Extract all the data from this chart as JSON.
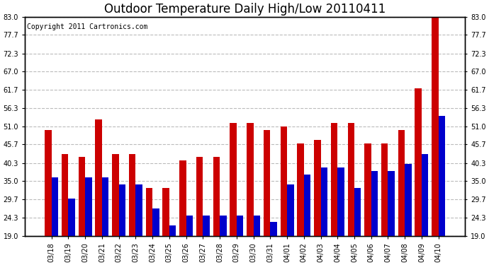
{
  "title": "Outdoor Temperature Daily High/Low 20110411",
  "copyright": "Copyright 2011 Cartronics.com",
  "dates": [
    "03/18",
    "03/19",
    "03/20",
    "03/21",
    "03/22",
    "03/23",
    "03/24",
    "03/25",
    "03/26",
    "03/27",
    "03/28",
    "03/29",
    "03/30",
    "03/31",
    "04/01",
    "04/02",
    "04/03",
    "04/04",
    "04/05",
    "04/06",
    "04/07",
    "04/08",
    "04/09",
    "04/10"
  ],
  "highs": [
    50.0,
    43.0,
    42.0,
    53.0,
    43.0,
    43.0,
    33.0,
    33.0,
    41.0,
    42.0,
    42.0,
    52.0,
    52.0,
    50.0,
    51.0,
    46.0,
    47.0,
    52.0,
    52.0,
    46.0,
    46.0,
    50.0,
    62.0,
    83.0
  ],
  "lows": [
    36.0,
    30.0,
    36.0,
    36.0,
    34.0,
    34.0,
    27.0,
    22.0,
    25.0,
    25.0,
    25.0,
    25.0,
    25.0,
    23.0,
    34.0,
    37.0,
    39.0,
    39.0,
    33.0,
    38.0,
    38.0,
    40.0,
    43.0,
    54.0
  ],
  "bar_color_high": "#cc0000",
  "bar_color_low": "#0000cc",
  "ylim": [
    19.0,
    83.0
  ],
  "yticks": [
    19.0,
    24.3,
    29.7,
    35.0,
    40.3,
    45.7,
    51.0,
    56.3,
    61.7,
    67.0,
    72.3,
    77.7,
    83.0
  ],
  "ytick_labels": [
    "19.0",
    "24.3",
    "29.7",
    "35.0",
    "40.3",
    "45.7",
    "51.0",
    "56.3",
    "61.7",
    "67.0",
    "72.3",
    "77.7",
    "83.0"
  ],
  "grid_color": "#bbbbbb",
  "bg_color": "#ffffff",
  "bar_width": 0.4,
  "title_fontsize": 12,
  "copyright_fontsize": 7,
  "tick_fontsize": 7
}
